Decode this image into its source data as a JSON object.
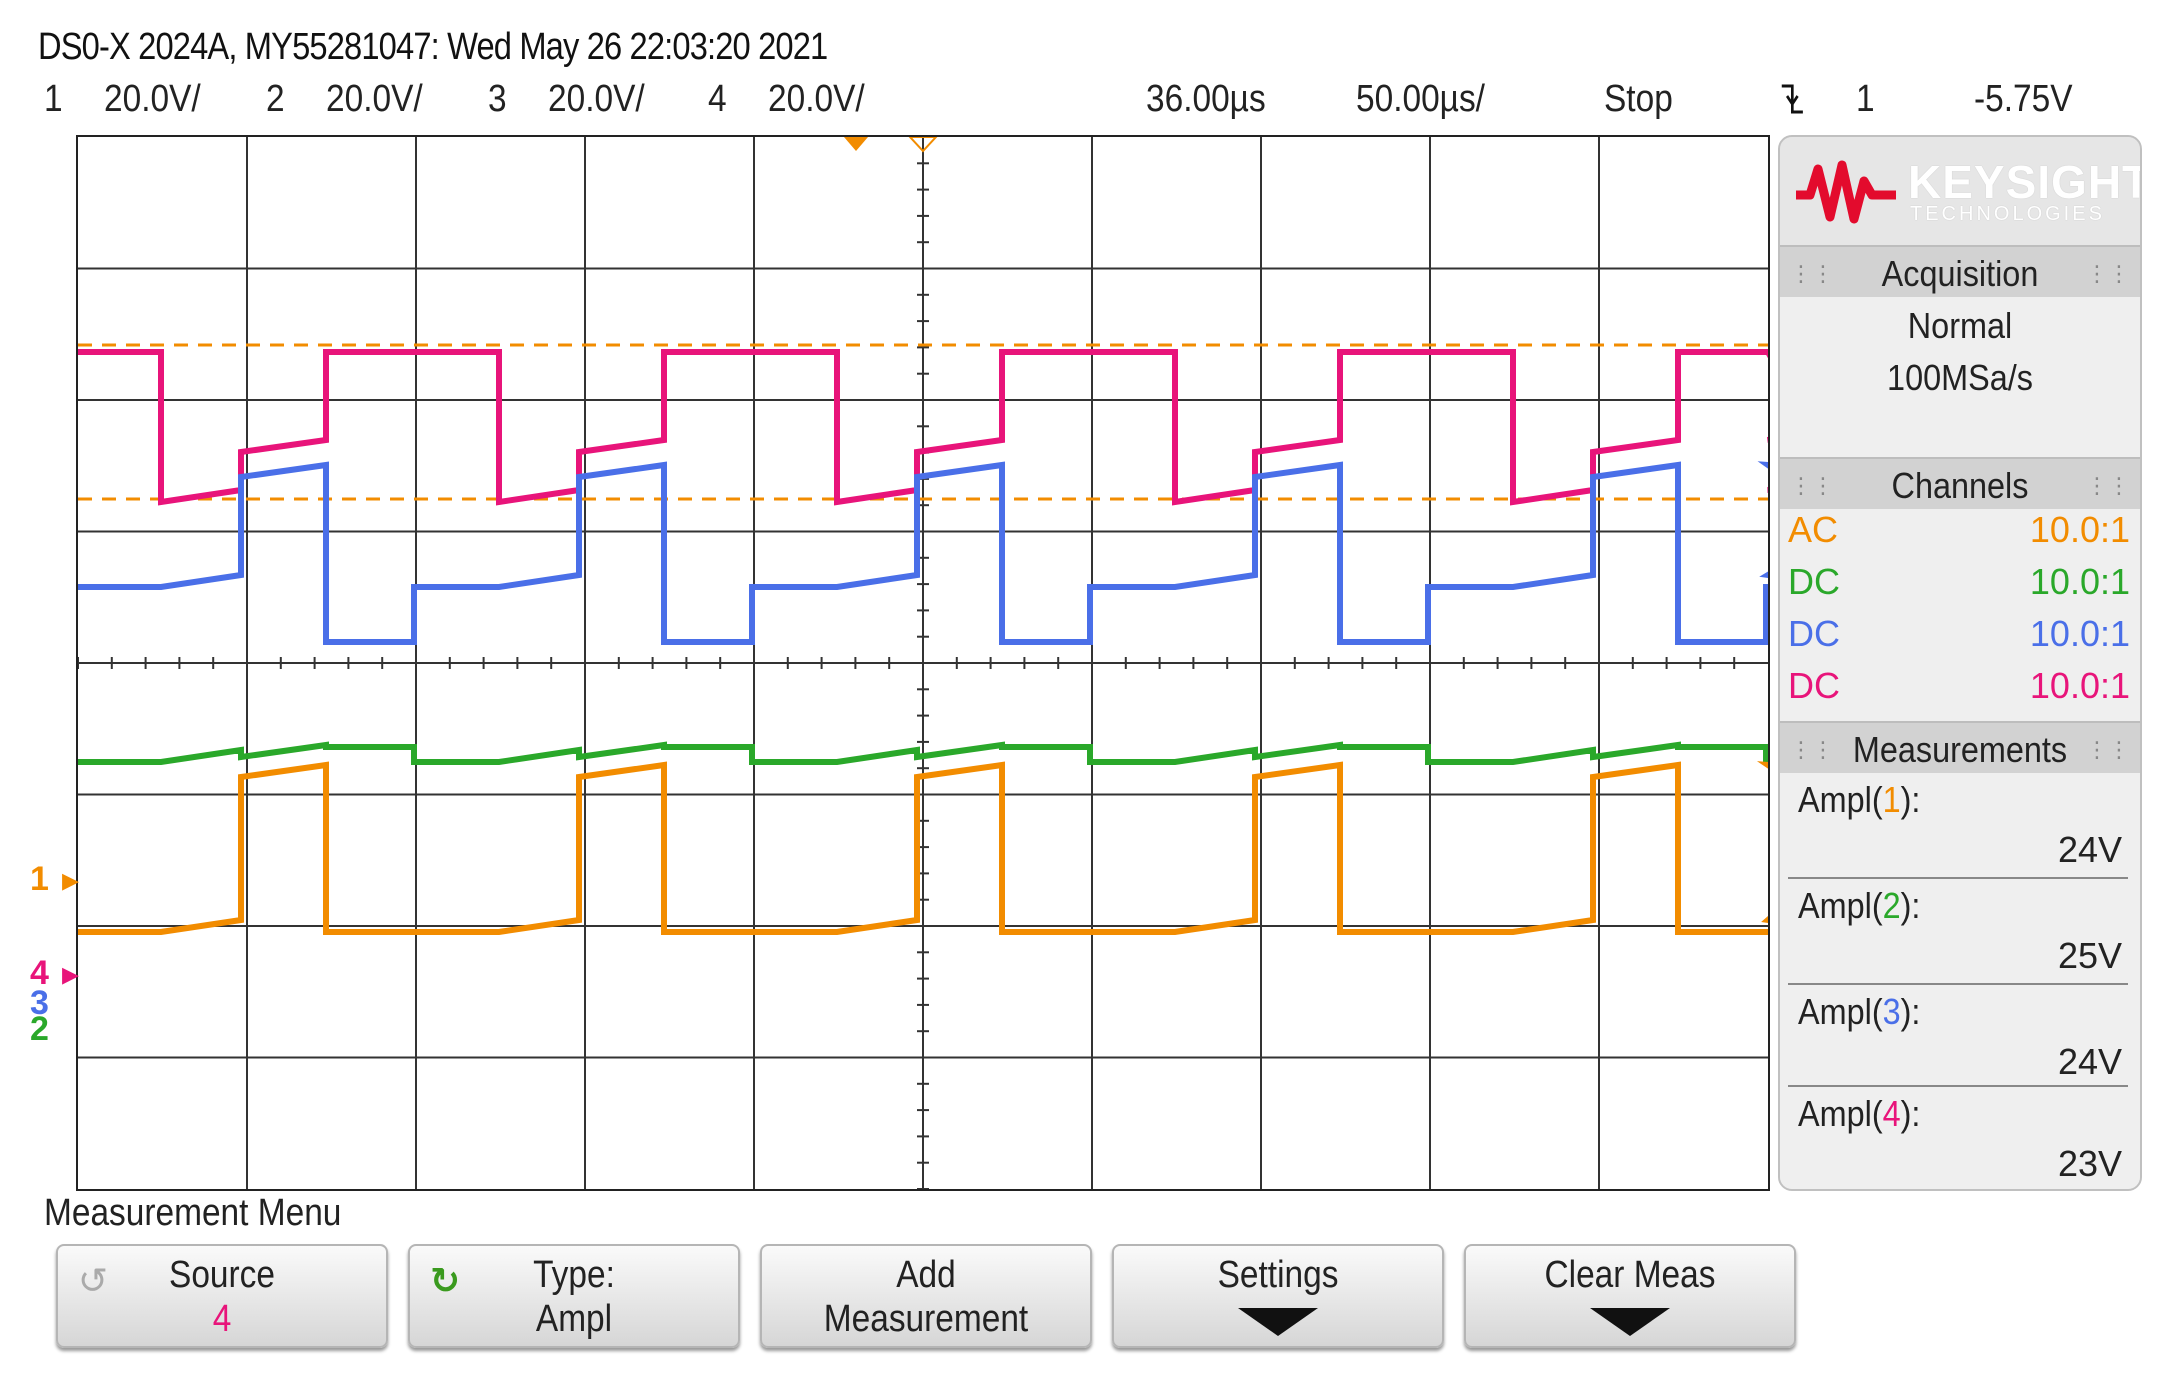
{
  "title": "DS0-X 2024A, MY55281047: Wed May 26 22:03:20 2021",
  "status": {
    "ch1_num": "1",
    "ch1_scale": "20.0V/",
    "ch2_num": "2",
    "ch2_scale": "20.0V/",
    "ch3_num": "3",
    "ch3_scale": "20.0V/",
    "ch4_num": "4",
    "ch4_scale": "20.0V/",
    "delay": "36.00µs",
    "timebase": "50.00µs/",
    "run_state": "Stop",
    "trigger_icon": "falling-edge-trigger-icon",
    "trigger_source": "1",
    "trigger_level": "-5.75V"
  },
  "colors": {
    "ch1": "#f28c00",
    "ch2": "#2aa82a",
    "ch3": "#4a6fe8",
    "ch4": "#e8147a",
    "brand": "#e30b2d"
  },
  "brand": {
    "name": "KEYSIGHT",
    "sub": "TECHNOLOGIES",
    "logo": "keysight-wave-logo"
  },
  "acquisition": {
    "header": "Acquisition",
    "mode": "Normal",
    "rate": "100MSa/s"
  },
  "channels": {
    "header": "Channels",
    "items": [
      {
        "coupling": "AC",
        "probe": "10.0:1"
      },
      {
        "coupling": "DC",
        "probe": "10.0:1"
      },
      {
        "coupling": "DC",
        "probe": "10.0:1"
      },
      {
        "coupling": "DC",
        "probe": "10.0:1"
      }
    ]
  },
  "measurements": {
    "header": "Measurements",
    "items": [
      {
        "prefix": "Ampl(",
        "ch": "1",
        "suffix": "):",
        "value": "24V"
      },
      {
        "prefix": "Ampl(",
        "ch": "2",
        "suffix": "):",
        "value": "25V"
      },
      {
        "prefix": "Ampl(",
        "ch": "3",
        "suffix": "):",
        "value": "24V"
      },
      {
        "prefix": "Ampl(",
        "ch": "4",
        "suffix": "):",
        "value": "23V"
      }
    ]
  },
  "ground_markers": {
    "ch1": "1",
    "ch4": "4",
    "ch3": "3",
    "ch2": "2"
  },
  "menu": {
    "label": "Measurement Menu",
    "softkeys": [
      {
        "line1": "Source",
        "line2": "4",
        "icon": "rotate-knob-icon"
      },
      {
        "line1": "Type:",
        "line2": "Ampl",
        "icon": "rotate-knob-icon"
      },
      {
        "line1": "Add",
        "line2": "Measurement"
      },
      {
        "line1": "Settings",
        "line2": ""
      },
      {
        "line1": "Clear Meas",
        "line2": ""
      }
    ]
  }
}
